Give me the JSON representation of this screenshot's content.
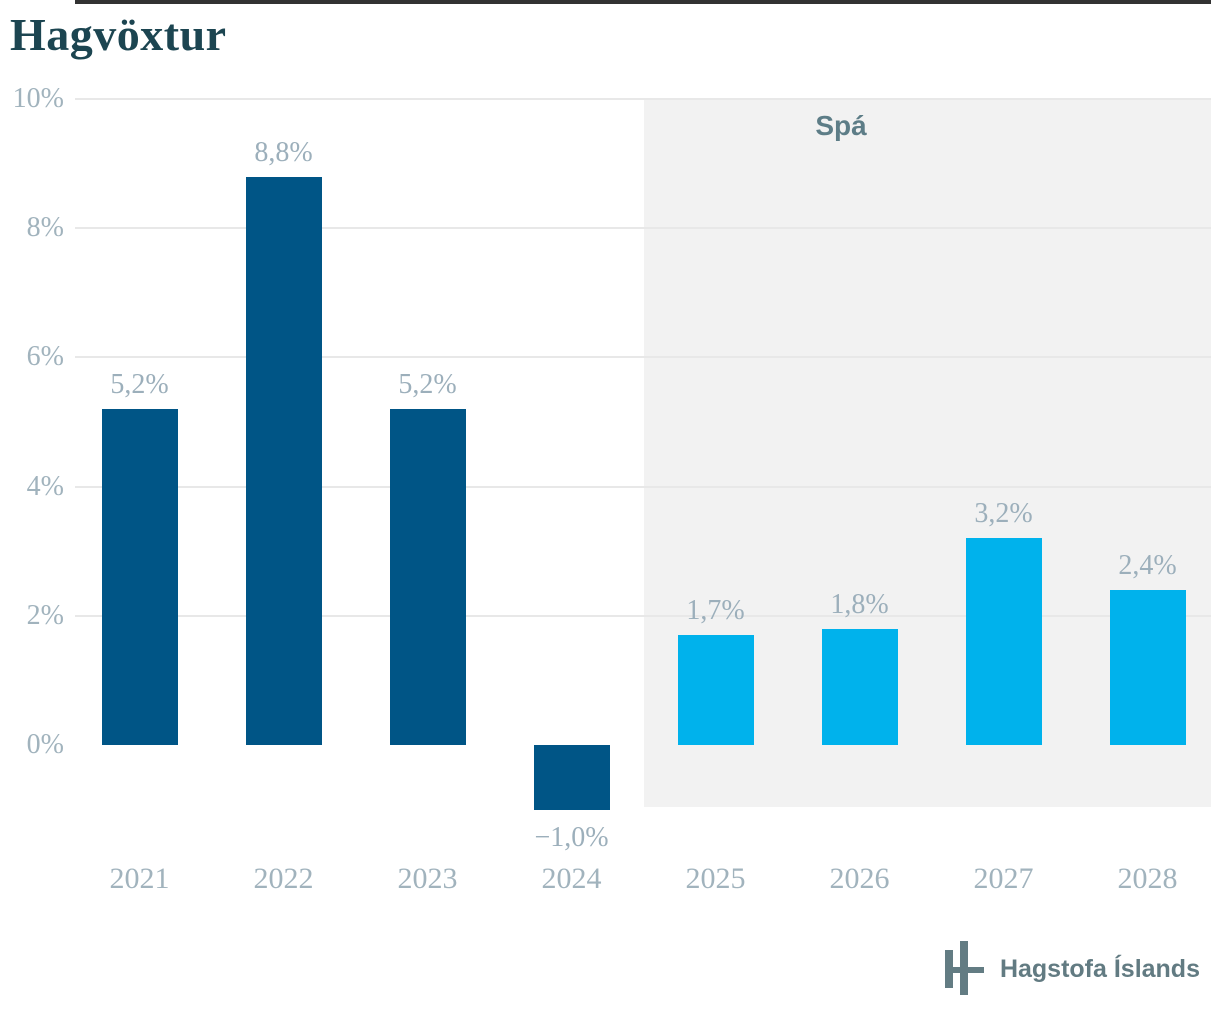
{
  "title": "Hagvöxtur",
  "forecast_label": "Spá",
  "source_label": "Hagstofa Íslands",
  "colors": {
    "actual_bar": "#005586",
    "forecast_bar": "#00b2ec",
    "forecast_band": "#f2f2f2",
    "title": "#1c4551",
    "axis_label": "#a1b3bd",
    "value_label": "#9cafbb",
    "forecast_text": "#5d7d87",
    "logo": "#637c83",
    "gridline": "#e8e8e8",
    "zero_line": "#323232"
  },
  "chart_data": {
    "type": "bar",
    "title": "Hagvöxtur",
    "categories": [
      "2021",
      "2022",
      "2023",
      "2024",
      "2025",
      "2026",
      "2027",
      "2028"
    ],
    "values": [
      5.2,
      8.8,
      5.2,
      -1.0,
      1.7,
      1.8,
      3.2,
      2.4
    ],
    "value_labels": [
      "5,2%",
      "8,8%",
      "5,2%",
      "−1,0%",
      "1,7%",
      "1,8%",
      "3,2%",
      "2,4%"
    ],
    "forecast_from_index": 4,
    "forecast_region_label": "Spá",
    "y_ticks": [
      {
        "pct": 10,
        "label": "10%"
      },
      {
        "pct": 8,
        "label": "8%"
      },
      {
        "pct": 6,
        "label": "6%"
      },
      {
        "pct": 4,
        "label": "4%"
      },
      {
        "pct": 2,
        "label": "2%"
      },
      {
        "pct": 0,
        "label": "0%"
      }
    ],
    "xlabel": "",
    "ylabel": "",
    "ylim": [
      -1.0,
      10
    ],
    "grid": true,
    "legend": false
  }
}
